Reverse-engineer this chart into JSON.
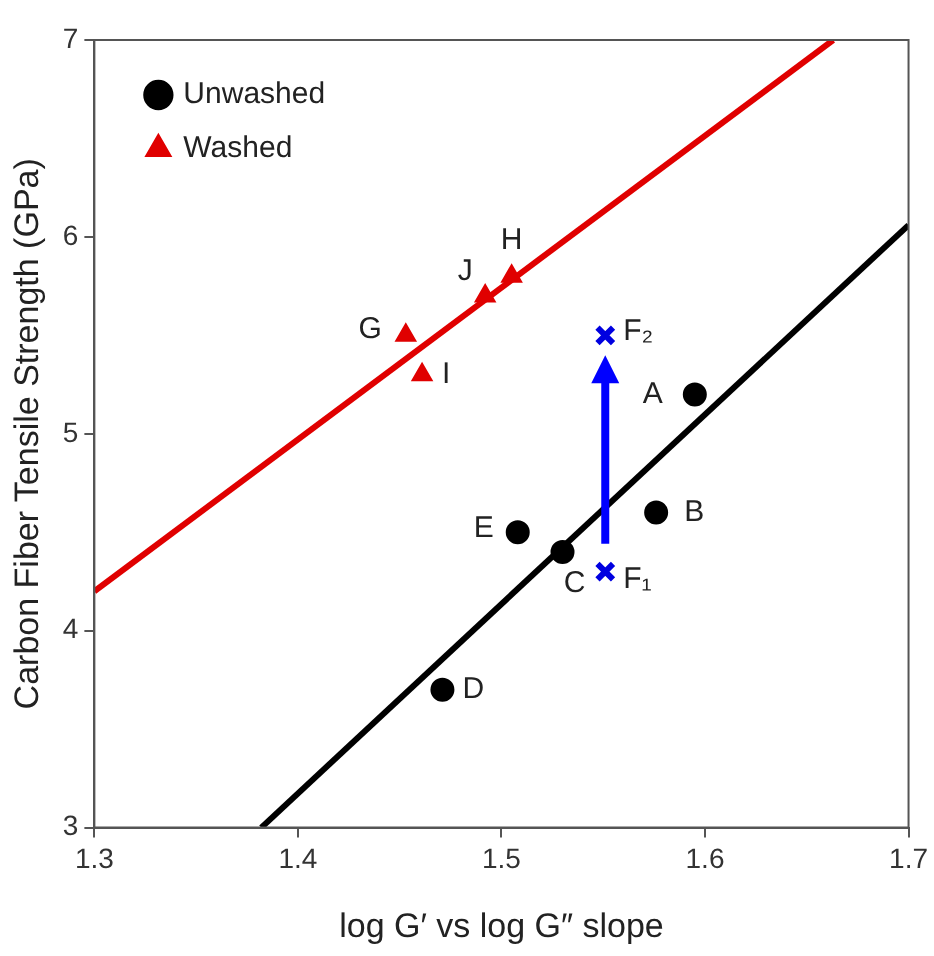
{
  "chart_data": {
    "type": "scatter",
    "xlabel": "log G′ vs log G″ slope",
    "ylabel": "Carbon Fiber Tensile Strength (GPa)",
    "xlim": [
      1.3,
      1.7
    ],
    "xticks": [
      1.3,
      1.4,
      1.5,
      1.6,
      1.7
    ],
    "ylim": [
      3,
      7
    ],
    "yticks": [
      3,
      4,
      5,
      6,
      7
    ],
    "grid": false,
    "legend": "top left",
    "series": [
      {
        "name": "Unwashed",
        "type": "scatter",
        "marker": "circle",
        "color": "#000000",
        "x": [
          1.595,
          1.576,
          1.53,
          1.471,
          1.508
        ],
        "values": [
          5.2,
          4.6,
          4.4,
          3.7,
          4.5
        ]
      },
      {
        "name": "Washed",
        "type": "scatter",
        "marker": "triangle",
        "color": "#e00000",
        "x": [
          1.453,
          1.505,
          1.461,
          1.492
        ],
        "values": [
          5.5,
          5.8,
          5.3,
          5.7
        ]
      },
      {
        "type": "scatter",
        "marker": "cross",
        "color": "#0000e0",
        "x": [
          1.551,
          1.551
        ],
        "values": [
          4.3,
          5.5
        ]
      },
      {
        "type": "line",
        "marker": "none",
        "color": "#000000",
        "x": [
          1.382,
          1.7
        ],
        "values": [
          3,
          6.06
        ]
      },
      {
        "type": "line",
        "marker": "none",
        "color": "#e00000",
        "x": [
          1.3,
          1.663
        ],
        "values": [
          4.2,
          7
        ]
      }
    ],
    "annotations": [
      {
        "text": "A",
        "x": 1.595,
        "y": 5.2
      },
      {
        "text": "B",
        "x": 1.576,
        "y": 4.6
      },
      {
        "text": "C",
        "x": 1.53,
        "y": 4.4
      },
      {
        "text": "D",
        "x": 1.471,
        "y": 3.7
      },
      {
        "text": "E",
        "x": 1.508,
        "y": 4.5
      },
      {
        "text": "G",
        "x": 1.453,
        "y": 5.5
      },
      {
        "text": "H",
        "x": 1.505,
        "y": 5.8
      },
      {
        "text": "I",
        "x": 1.461,
        "y": 5.3
      },
      {
        "text": "J",
        "x": 1.492,
        "y": 5.7
      },
      {
        "text": "F₁",
        "x": 1.551,
        "y": 4.3
      },
      {
        "text": "F₂",
        "x": 1.551,
        "y": 5.5
      }
    ]
  }
}
